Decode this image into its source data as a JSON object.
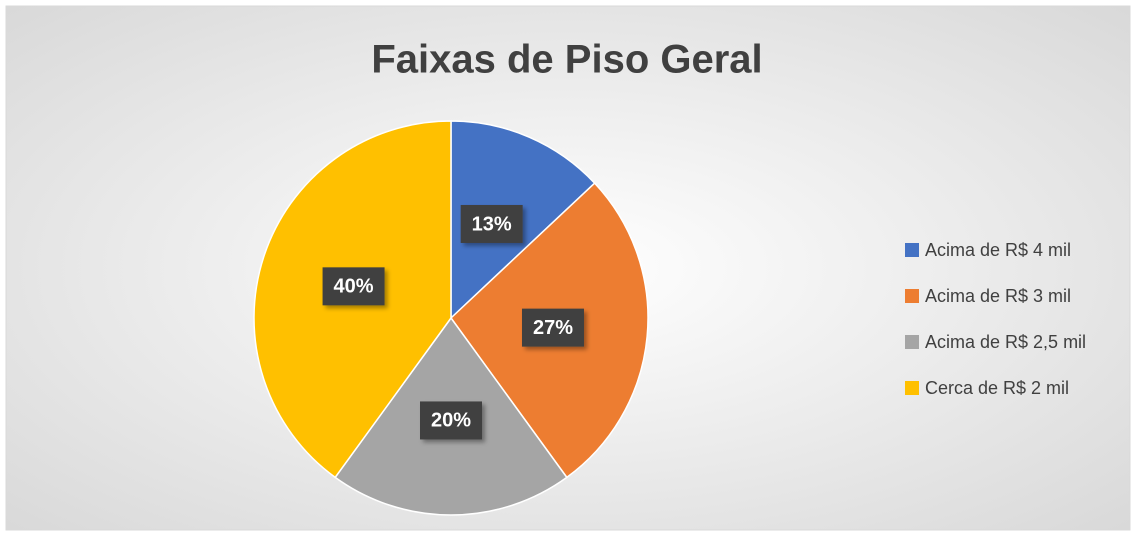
{
  "chart_data": {
    "type": "pie",
    "title": "Faixas de Piso Geral",
    "categories": [
      "Acima de R$ 4 mil",
      "Acima de R$ 3 mil",
      "Acima de R$ 2,5 mil",
      "Cerca de R$ 2 mil"
    ],
    "values": [
      13,
      27,
      20,
      40
    ],
    "value_labels": [
      "13%",
      "27%",
      "20%",
      "40%"
    ],
    "colors": [
      "#4472c4",
      "#ed7d31",
      "#a5a5a5",
      "#ffc000"
    ],
    "legend": "right"
  }
}
